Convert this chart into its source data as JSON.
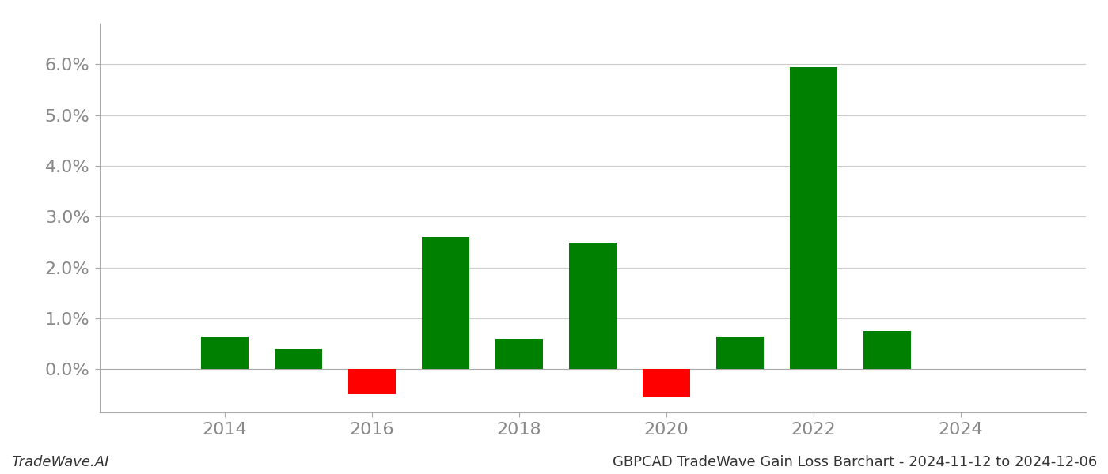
{
  "years": [
    2014,
    2015,
    2016,
    2017,
    2018,
    2019,
    2020,
    2021,
    2022,
    2023
  ],
  "values": [
    0.0065,
    0.004,
    -0.005,
    0.026,
    0.006,
    0.025,
    -0.0055,
    0.0065,
    0.0595,
    0.0075
  ],
  "colors_positive": "#008000",
  "colors_negative": "#ff0000",
  "title": "GBPCAD TradeWave Gain Loss Barchart - 2024-11-12 to 2024-12-06",
  "watermark": "TradeWave.AI",
  "background_color": "#ffffff",
  "grid_color": "#cccccc",
  "xlim": [
    2012.3,
    2025.7
  ],
  "ylim": [
    -0.0085,
    0.068
  ],
  "yticks": [
    0.0,
    0.01,
    0.02,
    0.03,
    0.04,
    0.05,
    0.06
  ],
  "ytick_labels": [
    "0.0%",
    "1.0%",
    "2.0%",
    "3.0%",
    "4.0%",
    "5.0%",
    "6.0%"
  ],
  "xticks": [
    2014,
    2016,
    2018,
    2020,
    2022,
    2024
  ],
  "bar_width": 0.65,
  "tick_fontsize": 16,
  "footer_fontsize": 13
}
